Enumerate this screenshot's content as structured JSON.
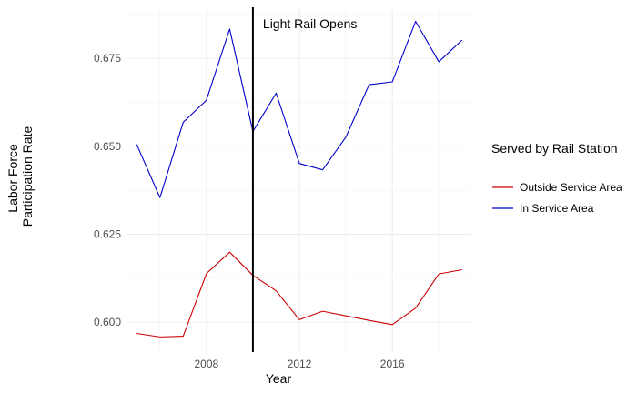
{
  "chart_data": {
    "type": "line",
    "title": "",
    "xlabel": "Year",
    "ylabel": [
      "Labor Force",
      "Participation Rate"
    ],
    "xlim": [
      2004.6,
      2019.4
    ],
    "ylim": [
      0.5915,
      0.6895
    ],
    "x_ticks": [
      2008,
      2012,
      2016
    ],
    "x_tick_labels": [
      "2008",
      "2012",
      "2016"
    ],
    "y_ticks": [
      0.6,
      0.625,
      0.65,
      0.675
    ],
    "y_tick_labels": [
      "0.600",
      "0.625",
      "0.650",
      "0.675"
    ],
    "grid": true,
    "legend": {
      "title": "Served by Rail Station",
      "position": "right"
    },
    "series": [
      {
        "name": "Outside Service Area",
        "color": "#cc0000",
        "x": [
          2005,
          2006,
          2007,
          2008,
          2009,
          2010,
          2011,
          2012,
          2013,
          2014,
          2015,
          2016,
          2017,
          2018,
          2019
        ],
        "values": [
          0.5968,
          0.5958,
          0.596,
          0.6138,
          0.6199,
          0.6133,
          0.6089,
          0.6007,
          0.6031,
          0.6018,
          0.6005,
          0.5993,
          0.604,
          0.6137,
          0.6149
        ]
      },
      {
        "name": "In Service Area",
        "color": "#0000cc",
        "x": [
          2005,
          2006,
          2007,
          2008,
          2009,
          2010,
          2011,
          2012,
          2013,
          2014,
          2015,
          2016,
          2017,
          2018,
          2019
        ],
        "values": [
          0.6505,
          0.6354,
          0.6568,
          0.6631,
          0.6833,
          0.6542,
          0.6651,
          0.6451,
          0.6433,
          0.6526,
          0.6675,
          0.6683,
          0.6855,
          0.674,
          0.6802
        ]
      }
    ],
    "annotations": [
      {
        "type": "vline",
        "x": 2010,
        "color": "#000000",
        "label": "Light Rail Opens"
      }
    ]
  }
}
